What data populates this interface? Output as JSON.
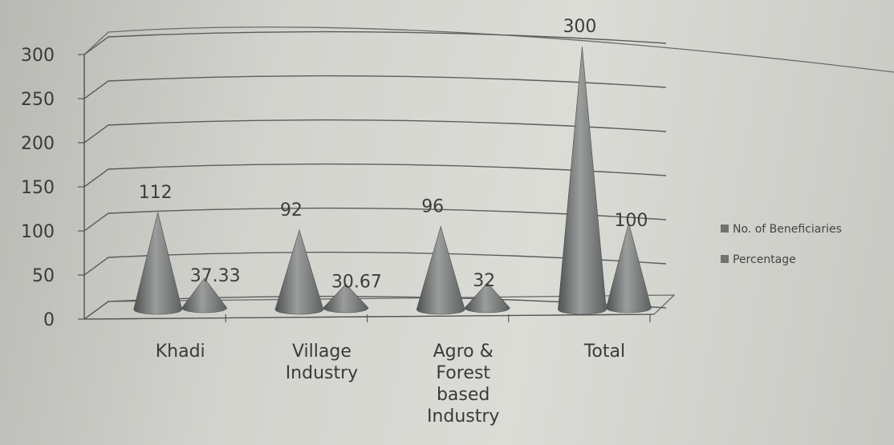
{
  "chart_data": {
    "type": "bar",
    "style": "3d-cone",
    "categories": [
      [
        "Khadi"
      ],
      [
        "Village",
        "Industry"
      ],
      [
        "Agro &",
        "Forest",
        "based",
        "Industry"
      ],
      [
        "Total"
      ]
    ],
    "series": [
      {
        "name": "No. of Beneficiaries",
        "values": [
          112,
          92,
          96,
          300
        ],
        "labels": [
          "112",
          "92",
          "96",
          "300"
        ]
      },
      {
        "name": "Percentage",
        "values": [
          37.33,
          30.67,
          32,
          100
        ],
        "labels": [
          "37.33",
          "30.67",
          "32",
          "100"
        ]
      }
    ],
    "ylim": [
      0,
      300
    ],
    "yticks": [
      "0",
      "50",
      "100",
      "150",
      "200",
      "250",
      "300"
    ],
    "grid": true,
    "legend": "right",
    "colors": {
      "cone": "#737775",
      "cone_light": "#9a9d9b",
      "cone_dark": "#4e5250",
      "grid": "#5c5c5c",
      "legend_marker": "#6f7371"
    }
  }
}
